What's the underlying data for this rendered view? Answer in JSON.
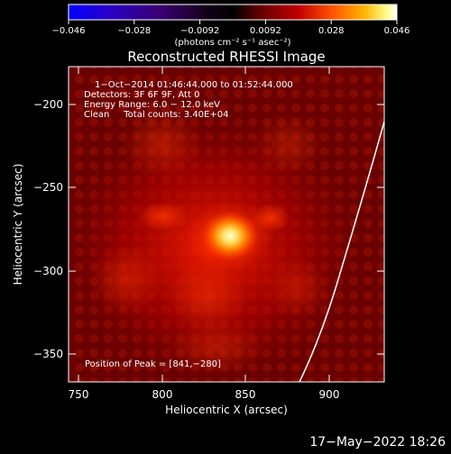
{
  "colorbar": {
    "tick_labels": [
      "−0.046",
      "−0.028",
      "−0.0092",
      "0.0092",
      "0.028",
      "0.046"
    ],
    "unit_label": "(photons cm⁻² s⁻¹ asec⁻²)",
    "colormap": [
      "#0000ff",
      "#2000c8",
      "#3a006e",
      "#1a0022",
      "#000000",
      "#5a0000",
      "#b00000",
      "#ff4a00",
      "#ffb000",
      "#ffff80",
      "#ffffff"
    ]
  },
  "plot": {
    "title": "Reconstructed RHESSI Image",
    "info_lines": [
      "1−Oct−2014 01:46:44.000 to 01:52:44.000",
      "Detectors: 3F 6F 9F, Att 0",
      "Energy Range: 6.0 − 12.0 keV",
      "Clean     Total counts: 3.40E+04"
    ],
    "peak_label": "Position of Peak = [841,−280]",
    "x_axis": {
      "label": "Heliocentric X (arcsec)",
      "ticks": [
        "750",
        "800",
        "850",
        "900"
      ]
    },
    "y_axis": {
      "label": "Heliocentric Y (arcsec)",
      "ticks": [
        "−200",
        "−250",
        "−300",
        "−350"
      ]
    }
  },
  "footer": {
    "timestamp": "17−May−2022 18:26"
  }
}
